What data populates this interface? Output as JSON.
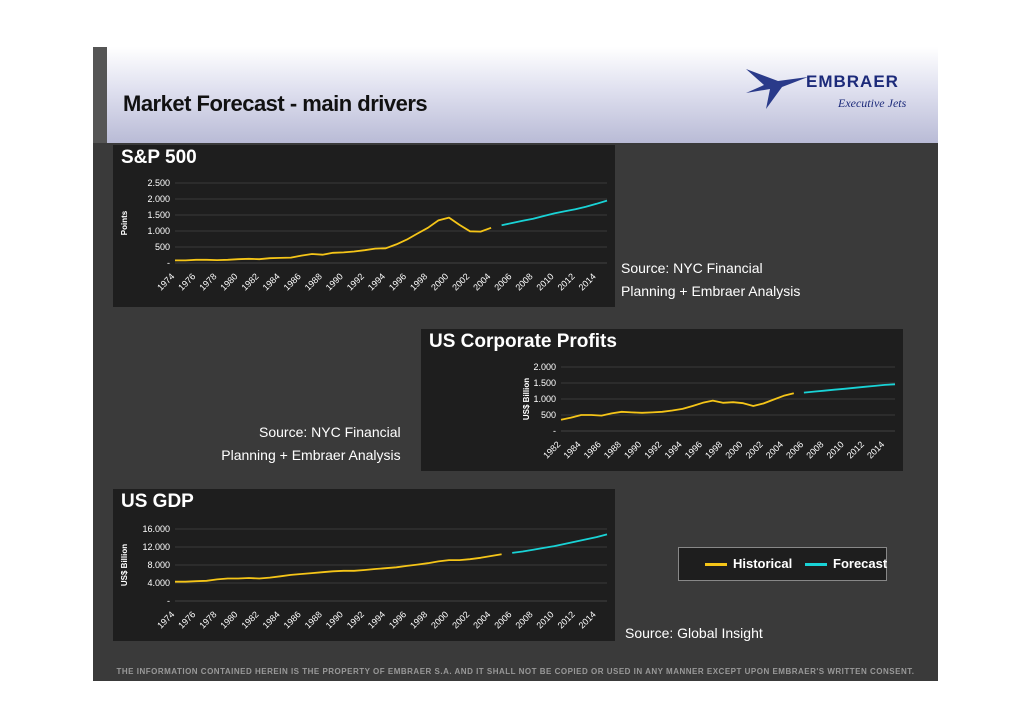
{
  "slide": {
    "title": "Market Forecast - main drivers",
    "logo_text": "EMBRAER",
    "logo_subtext": "Executive Jets",
    "footer": "THE INFORMATION CONTAINED HEREIN IS THE PROPERTY OF EMBRAER S.A. AND IT SHALL NOT BE COPIED OR USED IN ANY MANNER  EXCEPT UPON EMBRAER'S WRITTEN CONSENT."
  },
  "colors": {
    "historical": "#f5c518",
    "forecast": "#19d3d6",
    "grid": "#555555",
    "text": "#ffffff"
  },
  "legend": {
    "historical": "Historical",
    "forecast": "Forecast"
  },
  "sources": {
    "sp500": [
      "Source: NYC Financial",
      "Planning + Embraer Analysis"
    ],
    "profits": [
      "Source: NYC Financial",
      "Planning + Embraer Analysis"
    ],
    "gdp": [
      "Source: Global Insight"
    ]
  },
  "chart_data": [
    {
      "type": "line",
      "title": "S&P 500",
      "ylabel": "Points",
      "ylim": [
        0,
        2500
      ],
      "yticks": [
        0,
        500,
        1000,
        1500,
        2000,
        2500
      ],
      "ytick_labels": [
        "-",
        "500",
        "1.000",
        "1.500",
        "2.000",
        "2.500"
      ],
      "x_start": 1974,
      "x_end": 2015,
      "xticks": [
        "1974",
        "1976",
        "1978",
        "1980",
        "1982",
        "1984",
        "1986",
        "1988",
        "1990",
        "1992",
        "1994",
        "1996",
        "1998",
        "2000",
        "2002",
        "2004",
        "2006",
        "2008",
        "2010",
        "2012",
        "2014"
      ],
      "series": [
        {
          "name": "Historical",
          "x": [
            1974,
            1975,
            1976,
            1977,
            1978,
            1979,
            1980,
            1981,
            1982,
            1983,
            1984,
            1985,
            1986,
            1987,
            1988,
            1989,
            1990,
            1991,
            1992,
            1993,
            1994,
            1995,
            1996,
            1997,
            1998,
            1999,
            2000,
            2001,
            2002,
            2003,
            2004
          ],
          "values": [
            80,
            80,
            100,
            100,
            90,
            100,
            120,
            130,
            120,
            150,
            160,
            170,
            230,
            280,
            260,
            320,
            330,
            360,
            400,
            450,
            460,
            580,
            730,
            920,
            1100,
            1330,
            1420,
            1190,
            990,
            980,
            1100
          ]
        },
        {
          "name": "Forecast",
          "x": [
            2005,
            2006,
            2007,
            2008,
            2009,
            2010,
            2011,
            2012,
            2013,
            2014,
            2015
          ],
          "values": [
            1180,
            1250,
            1320,
            1380,
            1470,
            1550,
            1620,
            1680,
            1760,
            1850,
            1950
          ]
        }
      ]
    },
    {
      "type": "line",
      "title": "US Corporate Profits",
      "ylabel": "US$ Billion",
      "ylim": [
        0,
        2000
      ],
      "yticks": [
        0,
        500,
        1000,
        1500,
        2000
      ],
      "ytick_labels": [
        "-",
        "500",
        "1.000",
        "1.500",
        "2.000"
      ],
      "x_start": 1982,
      "x_end": 2015,
      "xticks": [
        "1982",
        "1984",
        "1986",
        "1988",
        "1990",
        "1992",
        "1994",
        "1996",
        "1998",
        "2000",
        "2002",
        "2004",
        "2006",
        "2008",
        "2010",
        "2012",
        "2014"
      ],
      "series": [
        {
          "name": "Historical",
          "x": [
            1982,
            1983,
            1984,
            1985,
            1986,
            1987,
            1988,
            1989,
            1990,
            1991,
            1992,
            1993,
            1994,
            1995,
            1996,
            1997,
            1998,
            1999,
            2000,
            2001,
            2002,
            2003,
            2004,
            2005
          ],
          "values": [
            350,
            420,
            500,
            500,
            480,
            550,
            600,
            580,
            570,
            580,
            600,
            640,
            690,
            780,
            880,
            950,
            880,
            900,
            870,
            780,
            860,
            980,
            1100,
            1180
          ]
        },
        {
          "name": "Forecast",
          "x": [
            2006,
            2007,
            2008,
            2009,
            2010,
            2011,
            2012,
            2013,
            2014,
            2015
          ],
          "values": [
            1200,
            1230,
            1260,
            1290,
            1320,
            1350,
            1380,
            1410,
            1440,
            1460
          ]
        }
      ]
    },
    {
      "type": "line",
      "title": "US GDP",
      "ylabel": "US$ Billion",
      "ylim": [
        0,
        16000
      ],
      "yticks": [
        0,
        4000,
        8000,
        12000,
        16000
      ],
      "ytick_labels": [
        "-",
        "4.000",
        "8.000",
        "12.000",
        "16.000"
      ],
      "x_start": 1974,
      "x_end": 2015,
      "xticks": [
        "1974",
        "1976",
        "1978",
        "1980",
        "1982",
        "1984",
        "1986",
        "1988",
        "1990",
        "1992",
        "1994",
        "1996",
        "1998",
        "2000",
        "2002",
        "2004",
        "2006",
        "2008",
        "2010",
        "2012",
        "2014"
      ],
      "series": [
        {
          "name": "Historical",
          "x": [
            1974,
            1975,
            1976,
            1977,
            1978,
            1979,
            1980,
            1981,
            1982,
            1983,
            1984,
            1985,
            1986,
            1987,
            1988,
            1989,
            1990,
            1991,
            1992,
            1993,
            1994,
            1995,
            1996,
            1997,
            1998,
            1999,
            2000,
            2001,
            2002,
            2003,
            2004,
            2005
          ],
          "values": [
            4300,
            4300,
            4400,
            4500,
            4800,
            5000,
            5000,
            5100,
            5000,
            5200,
            5500,
            5800,
            6000,
            6200,
            6400,
            6600,
            6700,
            6700,
            6900,
            7100,
            7300,
            7500,
            7800,
            8100,
            8400,
            8800,
            9100,
            9100,
            9300,
            9600,
            10000,
            10400
          ]
        },
        {
          "name": "Forecast",
          "x": [
            2006,
            2007,
            2008,
            2009,
            2010,
            2011,
            2012,
            2013,
            2014,
            2015
          ],
          "values": [
            10700,
            11000,
            11400,
            11800,
            12200,
            12700,
            13200,
            13700,
            14200,
            14800
          ]
        }
      ]
    }
  ]
}
